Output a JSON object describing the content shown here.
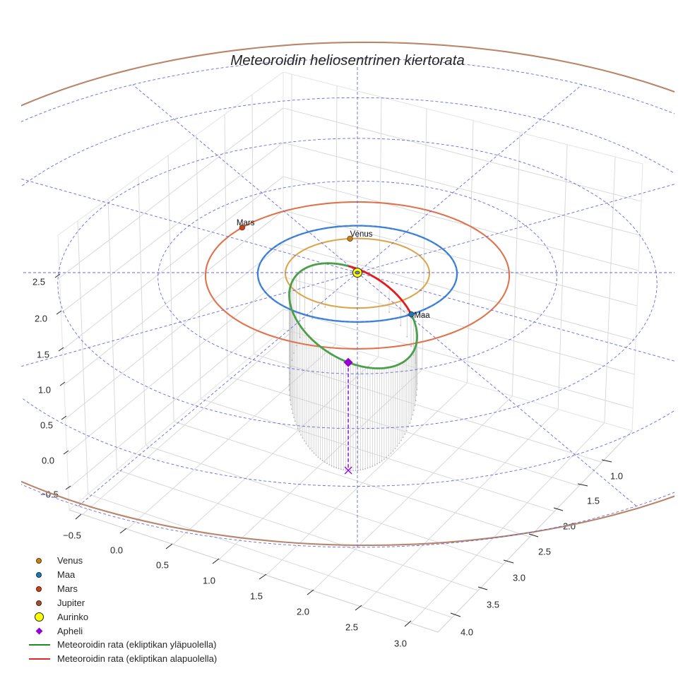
{
  "chart_data": {
    "type": "line",
    "projection": "3d",
    "title": "Meteoroidin heliosentrinen kiertorata",
    "xlabel": "",
    "ylabel": "",
    "zlabel": "",
    "grid": true,
    "legend_position": "lower left",
    "axes": {
      "x": {
        "ticks": [
          "−0.5",
          "0.0",
          "0.5",
          "1.0",
          "1.5",
          "2.0",
          "2.5",
          "3.0"
        ],
        "range": [
          -0.6,
          3.3
        ]
      },
      "y": {
        "ticks": [
          "1.0",
          "1.5",
          "2.0",
          "2.5",
          "3.0",
          "3.5",
          "4.0"
        ],
        "range": [
          0.8,
          4.2
        ]
      },
      "z": {
        "ticks": [
          "−0.5",
          "0.0",
          "0.5",
          "1.0",
          "1.5",
          "2.0",
          "2.5"
        ],
        "range": [
          -0.75,
          3.05
        ]
      }
    },
    "ecliptic_grid": {
      "circle_radii_au": [
        1,
        2,
        3,
        4,
        5
      ],
      "spoke_step_deg": 30,
      "spoke_length_au": 5,
      "style": "dashed",
      "color": "#5858de"
    },
    "sun": {
      "name": "Aurinko",
      "position_au": [
        0,
        0,
        0
      ],
      "color": "#ffff00"
    },
    "planets": [
      {
        "name": "Venus",
        "label": "Venus",
        "orbit_radius_au": 0.723,
        "longitude_deg": 96,
        "orbit_color": "#daa64e",
        "marker_color": "#c8801a"
      },
      {
        "name": "Maa",
        "label": "Maa",
        "orbit_radius_au": 1.0,
        "longitude_deg": -58,
        "orbit_color": "#3c8ed6",
        "marker_color": "#1f77b4"
      },
      {
        "name": "Mars",
        "label": "Mars",
        "orbit_radius_au": 1.524,
        "longitude_deg": 141,
        "orbit_color": "#e0734c",
        "marker_color": "#c8421a"
      },
      {
        "name": "Jupiter",
        "label": "",
        "orbit_radius_au": 5.203,
        "eccentricity": 0.048,
        "perihelion_longitude_deg": 250,
        "orbit_color": "#b8866a",
        "marker_color": "#a0522d"
      }
    ],
    "meteoroid": {
      "semi_major_axis_au": 1.71,
      "eccentricity": 0.918,
      "inclination_deg": 150.5,
      "ascending_node_longitude_deg": 302,
      "arg_perihelion_deg": 217.3,
      "perihelion_au": 0.14,
      "aphelion_au": 3.28,
      "color_above": "#4a9f4a",
      "color_below": "#e41a1c",
      "drop_lines": true
    },
    "aphelion": {
      "label": "Apheli",
      "color": "#9400d3",
      "marker": "diamond",
      "floor_marker": "x"
    },
    "legend": [
      {
        "label": "Venus",
        "type": "marker",
        "shape": "circle",
        "color": "#c8801a"
      },
      {
        "label": "Maa",
        "type": "marker",
        "shape": "circle",
        "color": "#1f77b4"
      },
      {
        "label": "Mars",
        "type": "marker",
        "shape": "circle",
        "color": "#c8421a"
      },
      {
        "label": "Jupiter",
        "type": "marker",
        "shape": "circle",
        "color": "#a0522d"
      },
      {
        "label": "Aurinko",
        "type": "marker",
        "shape": "circle-large",
        "color": "#ffff00"
      },
      {
        "label": "Apheli",
        "type": "marker",
        "shape": "diamond",
        "color": "#9400d3"
      },
      {
        "label": "Meteoroidin rata (ekliptikan yläpuolella)",
        "type": "line",
        "color": "#1e8c1e"
      },
      {
        "label": "Meteoroidin rata (ekliptikan alapuolella)",
        "type": "line",
        "color": "#e02828"
      }
    ]
  }
}
